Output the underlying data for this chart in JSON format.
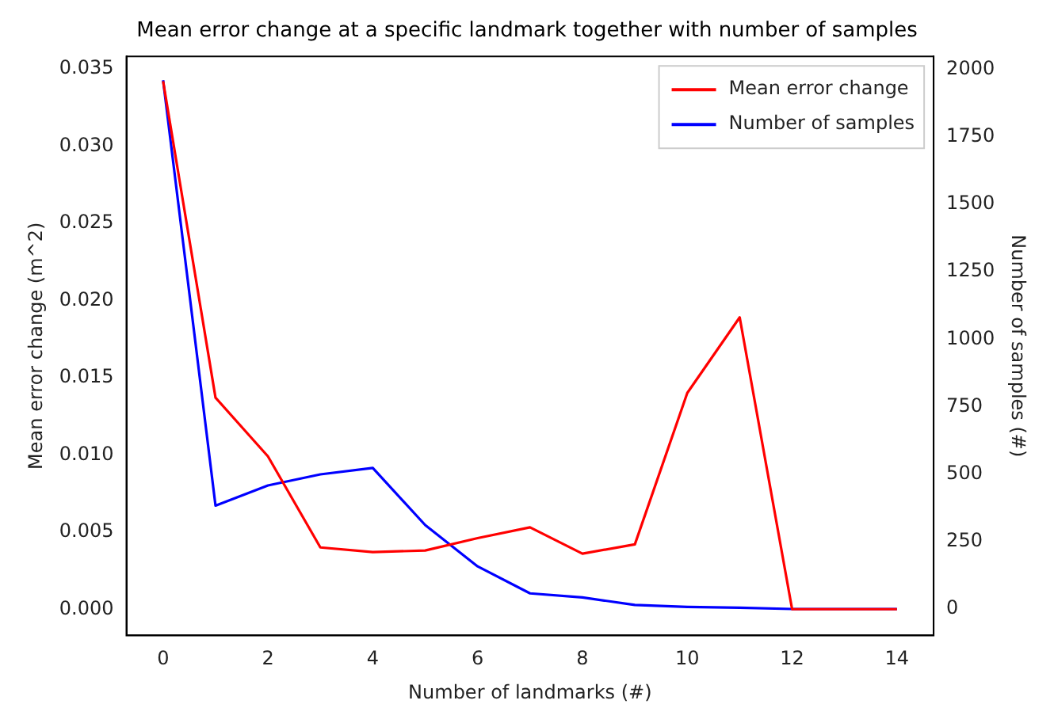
{
  "chart_data": {
    "type": "line",
    "title": "Mean error change at a specific landmark together with number of samples",
    "xlabel": "Number of landmarks (#)",
    "ylabel": "Mean error change (m^2)",
    "y2label": "Number of samples (#)",
    "x": [
      0,
      1,
      2,
      3,
      4,
      5,
      6,
      7,
      8,
      9,
      10,
      11,
      12,
      13,
      14
    ],
    "series": [
      {
        "name": "Mean error change",
        "color": "#ff0000",
        "values": [
          0.0342,
          0.0137,
          0.0099,
          0.004,
          0.0037,
          0.0038,
          0.0046,
          0.0053,
          0.0036,
          0.0042,
          0.014,
          0.0189,
          0.0,
          0.0,
          0.0
        ]
      },
      {
        "name": "Number of samples",
        "color": "#0000ff",
        "axis": "y2",
        "values": [
          1960,
          383,
          458,
          499,
          523,
          311,
          158,
          58,
          43,
          15,
          8,
          5,
          0,
          0,
          0
        ]
      }
    ],
    "xlim": [
      -0.7,
      14.7
    ],
    "xticks": [
      0,
      2,
      4,
      6,
      8,
      10,
      12,
      14
    ],
    "ylim": [
      -0.0017,
      0.0358
    ],
    "yticks": [
      {
        "value": 0,
        "label": "0.000"
      },
      {
        "value": 0.005,
        "label": "0.005"
      },
      {
        "value": 0.01,
        "label": "0.010"
      },
      {
        "value": 0.015,
        "label": "0.015"
      },
      {
        "value": 0.02,
        "label": "0.020"
      },
      {
        "value": 0.025,
        "label": "0.025"
      },
      {
        "value": 0.03,
        "label": "0.030"
      },
      {
        "value": 0.035,
        "label": "0.035"
      }
    ],
    "y2lim": [
      -98,
      2048
    ],
    "y2ticks": [
      0,
      250,
      500,
      750,
      1000,
      1250,
      1500,
      1750,
      2000
    ],
    "legend": "top right",
    "grid": false,
    "marker": "none",
    "line_style": "solid"
  }
}
